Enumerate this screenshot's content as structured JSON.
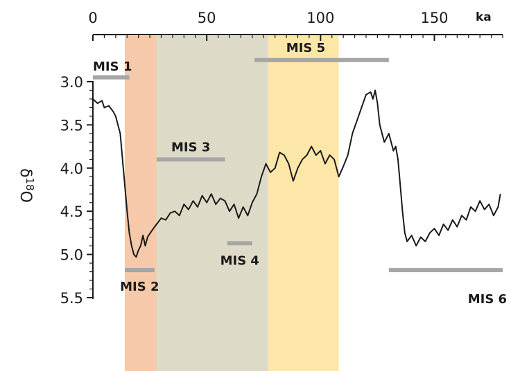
{
  "chart_data": {
    "type": "line",
    "title": "",
    "xlabel": "ka",
    "ylabel_base": "δ",
    "ylabel_superscript": "18",
    "ylabel_suffix": "O",
    "xlim": [
      0,
      180
    ],
    "ylim": [
      3.0,
      5.5
    ],
    "y_inverted": true,
    "x_ticks": [
      "0",
      "50",
      "100",
      "150"
    ],
    "x_tick_values": [
      0,
      50,
      100,
      150
    ],
    "y_ticks": [
      "3.0",
      "3.5",
      "4.0",
      "4.5",
      "5.0",
      "5.5"
    ],
    "y_tick_values": [
      3.0,
      3.5,
      4.0,
      4.5,
      5.0,
      5.5
    ],
    "grid": false,
    "series": [
      {
        "color": "#1a1a1a",
        "x": [
          0,
          2,
          4,
          5,
          7,
          9,
          10,
          12,
          13,
          14,
          15,
          16,
          17,
          18,
          19,
          20,
          21,
          22,
          23,
          24,
          26,
          28,
          30,
          32,
          34,
          36,
          38,
          40,
          42,
          44,
          46,
          48,
          50,
          52,
          54,
          56,
          58,
          60,
          62,
          64,
          66,
          68,
          70,
          72,
          74,
          76,
          78,
          80,
          82,
          84,
          86,
          88,
          90,
          92,
          94,
          96,
          98,
          100,
          102,
          104,
          106,
          108,
          110,
          112,
          114,
          116,
          118,
          120,
          122,
          123,
          124,
          125,
          126,
          128,
          130,
          132,
          133,
          134,
          135,
          136,
          137,
          138,
          140,
          142,
          144,
          146,
          148,
          150,
          152,
          154,
          156,
          158,
          160,
          162,
          164,
          166,
          168,
          170,
          172,
          174,
          176,
          178,
          179
        ],
        "y": [
          3.2,
          3.25,
          3.22,
          3.3,
          3.28,
          3.35,
          3.4,
          3.6,
          3.9,
          4.2,
          4.5,
          4.75,
          4.9,
          5.0,
          5.03,
          4.95,
          4.9,
          4.78,
          4.9,
          4.8,
          4.72,
          4.65,
          4.58,
          4.6,
          4.52,
          4.5,
          4.55,
          4.42,
          4.48,
          4.38,
          4.45,
          4.32,
          4.4,
          4.3,
          4.42,
          4.35,
          4.38,
          4.5,
          4.42,
          4.58,
          4.45,
          4.55,
          4.4,
          4.3,
          4.1,
          3.95,
          4.05,
          4.0,
          3.82,
          3.85,
          3.95,
          4.15,
          4.0,
          3.9,
          3.85,
          3.75,
          3.85,
          3.8,
          3.95,
          3.85,
          3.9,
          4.1,
          3.98,
          3.85,
          3.6,
          3.45,
          3.3,
          3.15,
          3.12,
          3.2,
          3.1,
          3.25,
          3.5,
          3.7,
          3.6,
          3.8,
          3.75,
          3.9,
          4.2,
          4.5,
          4.75,
          4.85,
          4.78,
          4.9,
          4.8,
          4.85,
          4.75,
          4.7,
          4.78,
          4.65,
          4.72,
          4.6,
          4.68,
          4.55,
          4.6,
          4.45,
          4.5,
          4.38,
          4.48,
          4.42,
          4.55,
          4.45,
          4.3
        ]
      }
    ],
    "shaded_bands": [
      {
        "x_start": 14,
        "x_end": 28,
        "color": "#f5c9a9"
      },
      {
        "x_start": 28,
        "x_end": 77,
        "color": "#dddbc8"
      },
      {
        "x_start": 77,
        "x_end": 108,
        "color": "#fde7a8"
      }
    ],
    "stage_bars": [
      {
        "label": "MIS 1",
        "x_start": 0,
        "x_end": 16,
        "y": 2.95
      },
      {
        "label": "MIS 2",
        "x_start": 14,
        "x_end": 27,
        "y": 5.18
      },
      {
        "label": "MIS 3",
        "x_start": 28,
        "x_end": 58,
        "y": 3.9
      },
      {
        "label": "MIS 4",
        "x_start": 59,
        "x_end": 70,
        "y": 4.87
      },
      {
        "label": "MIS 5",
        "x_start": 71,
        "x_end": 130,
        "y": 2.75
      },
      {
        "label": "MIS 6",
        "x_start": 130,
        "x_end": 180,
        "y": 5.18
      }
    ]
  }
}
